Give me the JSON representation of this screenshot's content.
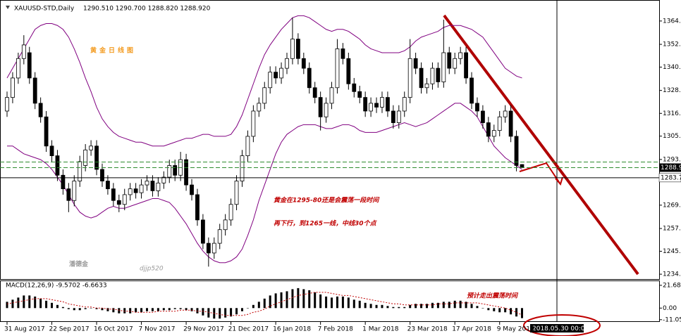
{
  "chart_data": [
    {
      "type": "candlestick",
      "title": "XAUUSD-STD,Daily",
      "ohlc_text": "1290.510 1290.700 1288.820 1288.920",
      "categories": [
        "31 Aug 2017",
        null,
        null,
        null,
        null,
        null,
        null,
        null,
        "22 Sep 2017",
        null,
        null,
        null,
        null,
        null,
        null,
        null,
        "16 Oct 2017",
        null,
        null,
        null,
        null,
        null,
        null,
        null,
        "7 Nov 2017",
        null,
        null,
        null,
        null,
        null,
        null,
        null,
        "29 Nov 2017",
        null,
        null,
        null,
        null,
        null,
        null,
        null,
        "21 Dec 2017",
        null,
        null,
        null,
        null,
        null,
        null,
        null,
        "16 Jan 2018",
        null,
        null,
        null,
        null,
        null,
        null,
        null,
        "7 Feb 2018",
        null,
        null,
        null,
        null,
        null,
        null,
        null,
        "1 Mar 2018",
        null,
        null,
        null,
        null,
        null,
        null,
        null,
        "23 Mar 2018",
        null,
        null,
        null,
        null,
        null,
        null,
        null,
        "17 Apr 2018",
        null,
        null,
        null,
        null,
        null,
        null,
        null,
        "9 May 2018",
        null,
        null,
        null,
        null
      ],
      "open": [
        1318,
        1325,
        1335,
        1345,
        1348,
        1335,
        1322,
        1315,
        1300,
        1295,
        1285,
        1278,
        1272,
        1282,
        1290,
        1298,
        1300,
        1288,
        1282,
        1278,
        1272,
        1270,
        1275,
        1278,
        1276,
        1280,
        1282,
        1277,
        1281,
        1284,
        1290,
        1285,
        1293,
        1280,
        1275,
        1262,
        1250,
        1245,
        1250,
        1257,
        1262,
        1270,
        1282,
        1295,
        1305,
        1318,
        1322,
        1330,
        1338,
        1335,
        1340,
        1345,
        1355,
        1345,
        1340,
        1330,
        1325,
        1315,
        1322,
        1330,
        1350,
        1345,
        1332,
        1328,
        1325,
        1318,
        1322,
        1320,
        1325,
        1318,
        1312,
        1318,
        1325,
        1345,
        1340,
        1330,
        1332,
        1340,
        1333,
        1348,
        1340,
        1345,
        1348,
        1335,
        1322,
        1318,
        1312,
        1305,
        1308,
        1315,
        1318,
        1305,
        1290.51
      ],
      "high": [
        1328,
        1338,
        1348,
        1357,
        1351,
        1338,
        1325,
        1318,
        1303,
        1298,
        1288,
        1281,
        1285,
        1295,
        1301,
        1303,
        1303,
        1291,
        1285,
        1281,
        1275,
        1278,
        1281,
        1281,
        1283,
        1285,
        1285,
        1284,
        1287,
        1293,
        1293,
        1297,
        1296,
        1283,
        1278,
        1265,
        1253,
        1253,
        1260,
        1265,
        1273,
        1285,
        1298,
        1308,
        1321,
        1325,
        1333,
        1341,
        1341,
        1343,
        1348,
        1366,
        1358,
        1348,
        1343,
        1333,
        1328,
        1325,
        1333,
        1355,
        1353,
        1348,
        1335,
        1331,
        1328,
        1325,
        1325,
        1328,
        1328,
        1321,
        1321,
        1328,
        1355,
        1348,
        1343,
        1335,
        1343,
        1343,
        1365,
        1351,
        1348,
        1351,
        1351,
        1338,
        1325,
        1321,
        1315,
        1311,
        1318,
        1321,
        1321,
        1308,
        1290.7
      ],
      "low": [
        1315,
        1322,
        1332,
        1342,
        1332,
        1319,
        1312,
        1297,
        1292,
        1282,
        1275,
        1266,
        1269,
        1279,
        1287,
        1295,
        1285,
        1279,
        1275,
        1269,
        1266,
        1267,
        1272,
        1273,
        1273,
        1277,
        1274,
        1274,
        1278,
        1281,
        1282,
        1282,
        1277,
        1272,
        1259,
        1247,
        1238,
        1242,
        1247,
        1254,
        1259,
        1267,
        1279,
        1292,
        1302,
        1315,
        1319,
        1327,
        1332,
        1332,
        1337,
        1342,
        1342,
        1337,
        1327,
        1322,
        1308,
        1312,
        1319,
        1327,
        1342,
        1329,
        1325,
        1322,
        1315,
        1315,
        1317,
        1317,
        1315,
        1309,
        1309,
        1315,
        1322,
        1337,
        1327,
        1327,
        1329,
        1330,
        1330,
        1337,
        1337,
        1342,
        1332,
        1319,
        1315,
        1309,
        1302,
        1302,
        1305,
        1312,
        1302,
        1287,
        1288.82
      ],
      "close": [
        1325,
        1335,
        1345,
        1352,
        1335,
        1322,
        1315,
        1300,
        1295,
        1285,
        1278,
        1272,
        1282,
        1292,
        1298,
        1300,
        1288,
        1282,
        1278,
        1272,
        1270,
        1275,
        1278,
        1276,
        1280,
        1282,
        1277,
        1281,
        1284,
        1290,
        1285,
        1293,
        1280,
        1275,
        1262,
        1250,
        1245,
        1250,
        1257,
        1262,
        1270,
        1282,
        1295,
        1305,
        1318,
        1322,
        1330,
        1338,
        1335,
        1340,
        1345,
        1355,
        1345,
        1340,
        1330,
        1325,
        1315,
        1322,
        1330,
        1350,
        1345,
        1332,
        1328,
        1325,
        1318,
        1322,
        1320,
        1325,
        1318,
        1312,
        1318,
        1325,
        1345,
        1340,
        1330,
        1332,
        1340,
        1333,
        1348,
        1340,
        1345,
        1348,
        1335,
        1322,
        1318,
        1312,
        1305,
        1308,
        1315,
        1318,
        1305,
        1290,
        1288.92
      ],
      "bands": [
        {
          "color": "#800080",
          "values": [
            1335,
            1340,
            1345,
            1350,
            1355,
            1360,
            1362,
            1363,
            1363,
            1362,
            1360,
            1356,
            1350,
            1343,
            1335,
            1328,
            1320,
            1314,
            1310,
            1307,
            1305,
            1304,
            1303,
            1302,
            1302,
            1301,
            1300,
            1300,
            1300,
            1301,
            1302,
            1303,
            1304,
            1304,
            1305,
            1306,
            1306,
            1305,
            1305,
            1305,
            1306,
            1310,
            1316,
            1324,
            1332,
            1340,
            1347,
            1352,
            1356,
            1360,
            1363,
            1366,
            1367,
            1367,
            1366,
            1364,
            1362,
            1360,
            1359,
            1360,
            1360,
            1359,
            1357,
            1355,
            1352,
            1350,
            1349,
            1348,
            1348,
            1348,
            1348,
            1349,
            1351,
            1354,
            1356,
            1357,
            1358,
            1359,
            1361,
            1362,
            1362,
            1362,
            1361,
            1360,
            1358,
            1356,
            1352,
            1348,
            1344,
            1340,
            1338,
            1336,
            1335
          ]
        },
        {
          "color": "#800080",
          "values": [
            1300,
            1300,
            1298,
            1296,
            1295,
            1294,
            1293,
            1291,
            1288,
            1284,
            1280,
            1275,
            1270,
            1266,
            1264,
            1263,
            1264,
            1266,
            1268,
            1269,
            1268,
            1268,
            1269,
            1270,
            1271,
            1272,
            1273,
            1273,
            1272,
            1271,
            1268,
            1264,
            1260,
            1255,
            1250,
            1246,
            1243,
            1241,
            1240,
            1240,
            1241,
            1243,
            1247,
            1254,
            1262,
            1272,
            1280,
            1288,
            1296,
            1302,
            1306,
            1308,
            1310,
            1311,
            1311,
            1311,
            1310,
            1309,
            1309,
            1310,
            1311,
            1311,
            1310,
            1308,
            1307,
            1307,
            1307,
            1308,
            1309,
            1310,
            1311,
            1312,
            1311,
            1310,
            1311,
            1312,
            1314,
            1316,
            1318,
            1320,
            1322,
            1322,
            1320,
            1318,
            1315,
            1310,
            1305,
            1300,
            1297,
            1294,
            1292,
            1290,
            1288
          ]
        }
      ],
      "ylim": [
        1231.6,
        1375.1
      ],
      "yticks": [
        1364.3,
        1352.3,
        1340.6,
        1328.6,
        1316.8,
        1305.1,
        1293.1,
        1269.6,
        1257.6,
        1245.9,
        1234.1
      ],
      "last_price": 1288.9,
      "crosshair_price": 1283.7,
      "crosshair_date": "2018.05.30 00:00",
      "annotations": [
        "黄金日线图",
        "黄金在1295-80还是会震荡一段时间",
        "再下行，到1265一线，中线30个点",
        "潘德金",
        "djjp520",
        "预计走出震荡时间"
      ]
    },
    {
      "type": "macd",
      "title": "MACD(12,26,9) -9.5702 -6.6633",
      "values": [
        6,
        8,
        10,
        12,
        12,
        11,
        9,
        7,
        5,
        3,
        1,
        -1,
        -2,
        -2,
        -1,
        0,
        -1,
        -2,
        -3,
        -4,
        -5,
        -5,
        -5,
        -4,
        -4,
        -3,
        -3,
        -3,
        -2,
        -2,
        -1,
        -1,
        -2,
        -3,
        -5,
        -7,
        -9,
        -10,
        -10,
        -9,
        -8,
        -6,
        -3,
        0,
        3,
        6,
        9,
        12,
        14,
        15,
        16,
        18,
        19,
        18,
        17,
        15,
        13,
        11,
        10,
        11,
        11,
        10,
        8,
        7,
        5,
        4,
        3,
        3,
        2,
        1,
        1,
        1,
        3,
        4,
        4,
        4,
        5,
        5,
        6,
        6,
        7,
        7,
        6,
        4,
        2,
        0,
        -2,
        -3,
        -4,
        -4,
        -6,
        -8,
        -9.5702
      ],
      "signal": [
        4,
        5,
        6,
        7,
        8,
        9,
        9,
        9,
        8,
        7,
        6,
        4,
        3,
        2,
        1,
        1,
        0,
        0,
        -1,
        -1,
        -2,
        -3,
        -3,
        -4,
        -4,
        -4,
        -4,
        -3,
        -3,
        -3,
        -3,
        -2,
        -2,
        -2,
        -3,
        -3,
        -4,
        -5,
        -6,
        -7,
        -7,
        -7,
        -7,
        -6,
        -4,
        -3,
        -1,
        2,
        4,
        6,
        8,
        10,
        12,
        13,
        14,
        15,
        15,
        15,
        14,
        13,
        12,
        12,
        11,
        10,
        9,
        8,
        7,
        6,
        5,
        4,
        4,
        3,
        3,
        3,
        3,
        3,
        3,
        4,
        4,
        4,
        5,
        5,
        5,
        5,
        5,
        4,
        3,
        2,
        1,
        0,
        -2,
        -4,
        -6.6633
      ],
      "signal_color": "#c00000",
      "ylim": [
        -13.2,
        26.3
      ],
      "yticks": [
        21.686,
        {
          "value": 0,
          "label": "0.00"
        },
        -11.055
      ]
    }
  ]
}
